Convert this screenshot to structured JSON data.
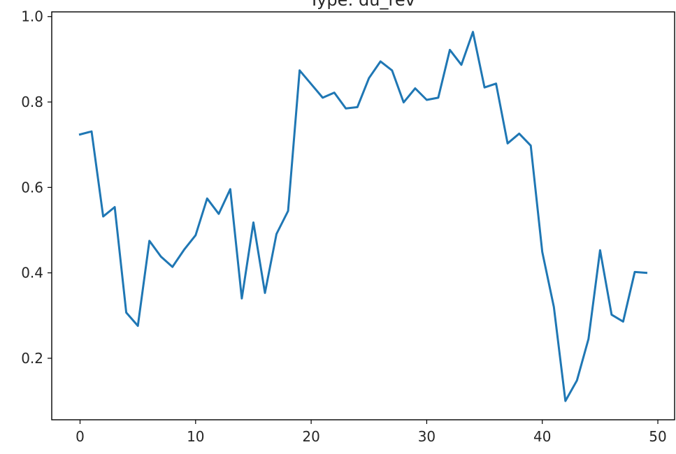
{
  "chart_data": {
    "type": "line",
    "title": "Type: du_rev",
    "xlabel": "",
    "ylabel": "",
    "xlim": [
      -2.45,
      51.45
    ],
    "ylim": [
      0.056,
      1.011
    ],
    "xticks": [
      0,
      10,
      20,
      30,
      40,
      50
    ],
    "yticks": [
      0.2,
      0.4,
      0.6,
      0.8,
      1.0
    ],
    "xtick_labels": [
      "0",
      "10",
      "20",
      "30",
      "40",
      "50"
    ],
    "ytick_labels": [
      "0.2",
      "0.4",
      "0.6",
      "0.8",
      "1.0"
    ],
    "grid": false,
    "legend": "none",
    "color": "#1f77b4",
    "series": [
      {
        "x": [
          0,
          1,
          2,
          3,
          4,
          5,
          6,
          7,
          8,
          9,
          10,
          11,
          12,
          13,
          14,
          15,
          16,
          17,
          18,
          19,
          20,
          21,
          22,
          23,
          24,
          25,
          26,
          27,
          28,
          29,
          30,
          31,
          32,
          33,
          34,
          35,
          36,
          37,
          38,
          39,
          40,
          41,
          42,
          43,
          44,
          45,
          46,
          47,
          48,
          49
        ],
        "values": [
          0.724,
          0.731,
          0.532,
          0.554,
          0.307,
          0.276,
          0.475,
          0.438,
          0.414,
          0.454,
          0.488,
          0.574,
          0.538,
          0.596,
          0.34,
          0.518,
          0.353,
          0.491,
          0.545,
          0.874,
          0.842,
          0.81,
          0.822,
          0.785,
          0.788,
          0.856,
          0.895,
          0.874,
          0.799,
          0.832,
          0.805,
          0.81,
          0.922,
          0.887,
          0.964,
          0.834,
          0.843,
          0.703,
          0.726,
          0.698,
          0.449,
          0.32,
          0.1,
          0.148,
          0.245,
          0.453,
          0.302,
          0.286,
          0.402,
          0.4
        ]
      }
    ]
  }
}
